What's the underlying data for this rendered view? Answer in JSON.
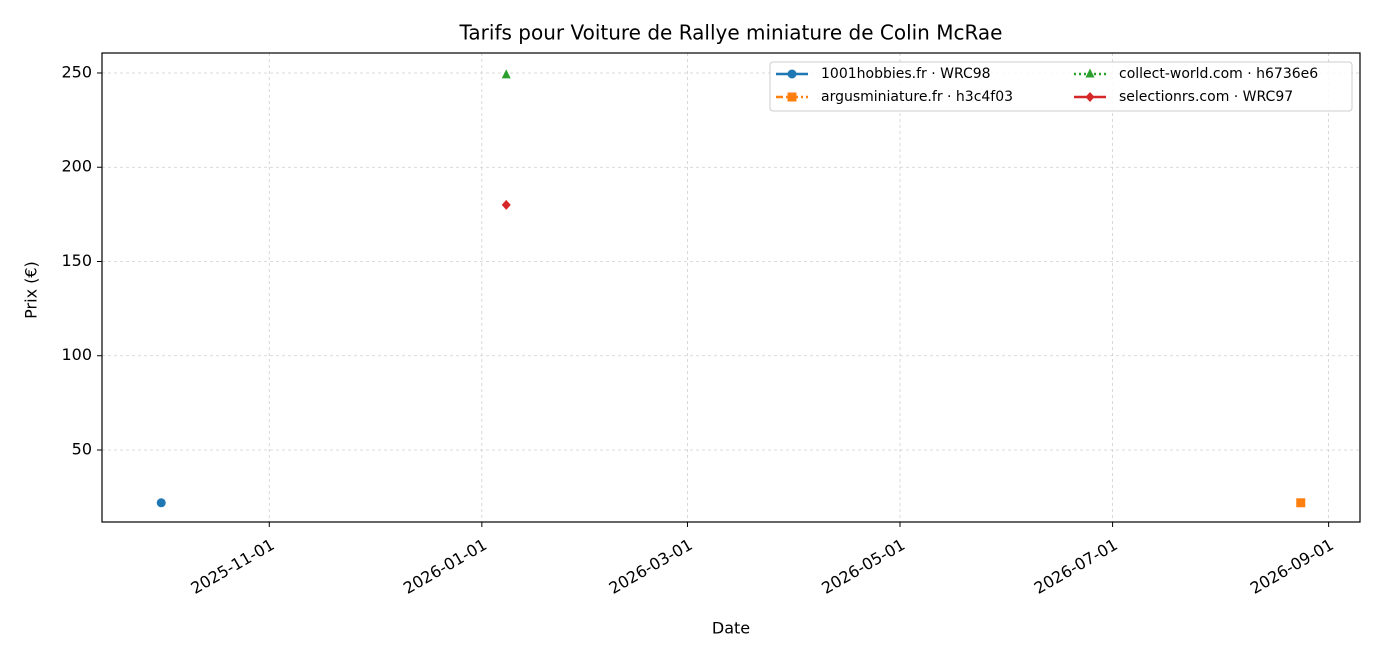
{
  "chart_data": {
    "type": "scatter",
    "title": "Tarifs pour Voiture de Rallye miniature de Colin McRae",
    "x_label": "Date",
    "y_label": "Prix (€)",
    "xlim": [
      "2025-09-14",
      "2026-09-10"
    ],
    "xticks": [
      "2025-11-01",
      "2026-01-01",
      "2026-03-01",
      "2026-05-01",
      "2026-07-01",
      "2026-09-01"
    ],
    "ylim": [
      11.8,
      260.6
    ],
    "yticks": [
      50,
      100,
      150,
      200,
      250
    ],
    "grid": true,
    "legend": "upper right",
    "legend_columns": 2,
    "series": [
      {
        "name": "1001hobbies.fr · WRC98",
        "color": "#1f77b4",
        "marker": "circle",
        "linestyle": "solid",
        "x": [
          "2025-10-01"
        ],
        "values": [
          22
        ]
      },
      {
        "name": "argusminiature.fr · h3c4f03",
        "color": "#ff7f0e",
        "marker": "square",
        "linestyle": "dashdot",
        "x": [
          "2026-08-24"
        ],
        "values": [
          22
        ]
      },
      {
        "name": "collect-world.com · h6736e6",
        "color": "#2ca02c",
        "marker": "triangle",
        "linestyle": "dotted",
        "x": [
          "2026-01-08"
        ],
        "values": [
          249
        ]
      },
      {
        "name": "selectionrs.com · WRC97",
        "color": "#d62728",
        "marker": "diamond",
        "linestyle": "solid",
        "x": [
          "2026-01-08"
        ],
        "values": [
          180
        ]
      }
    ]
  }
}
